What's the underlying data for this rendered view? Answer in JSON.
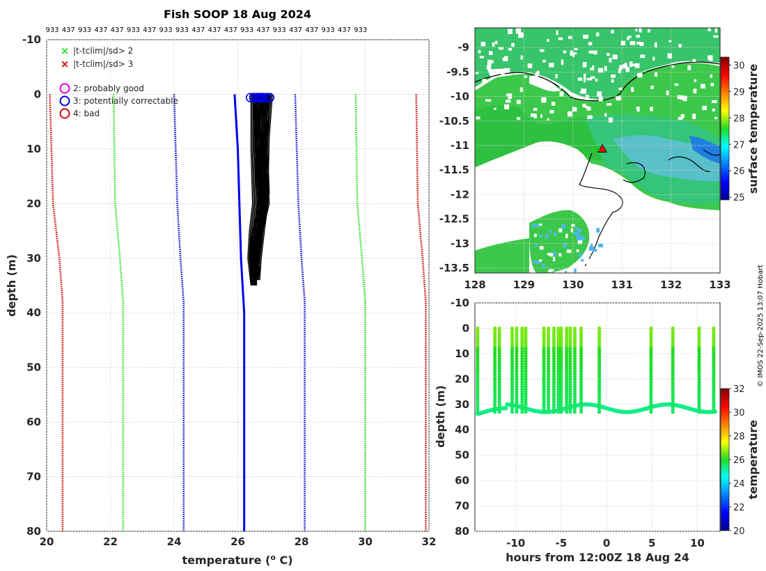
{
  "chart_data": [
    {
      "type": "line",
      "title": "Fish SOOP 18 Aug 2024",
      "top_labels": [
        "933",
        "437",
        "933",
        "437",
        "437",
        "933",
        "437",
        "933",
        "933",
        "437",
        "437",
        "437",
        "933",
        "437",
        "933",
        "437",
        "437",
        "933",
        "437",
        "933"
      ],
      "xlabel": "temperature (",
      "xlabel_sup": "o",
      "xlabel_end": " C)",
      "ylabel": "depth (m)",
      "xlim": [
        20,
        32
      ],
      "ylim": [
        -10,
        80
      ],
      "xticks": [
        "20",
        "22",
        "24",
        "26",
        "28",
        "30",
        "32"
      ],
      "yticks": [
        "-10",
        "0",
        "10",
        "20",
        "30",
        "40",
        "50",
        "60",
        "70",
        "80"
      ],
      "legend": [
        {
          "symbol": "x",
          "color": "#22dd22",
          "label": "|t-tclim|/sd> 2"
        },
        {
          "symbol": "x",
          "color": "#dd0000",
          "label": "|t-tclim|/sd> 3"
        },
        {
          "symbol": "o",
          "color": "#dd00dd",
          "label": "2: probably good"
        },
        {
          "symbol": "o",
          "color": "#0000dd",
          "label": "3: potentially correctable"
        },
        {
          "symbol": "o",
          "color": "#dd0000",
          "label": "4: bad"
        }
      ],
      "climatology": [
        {
          "name": "clim -3sd",
          "color": "#cc0000",
          "depth": [
            0,
            20,
            30,
            38,
            80
          ],
          "temp": [
            20.1,
            20.2,
            20.4,
            20.5,
            20.5
          ]
        },
        {
          "name": "clim -2sd",
          "color": "#22dd22",
          "depth": [
            0,
            20,
            30,
            38,
            80
          ],
          "temp": [
            22.1,
            22.15,
            22.3,
            22.4,
            22.4
          ]
        },
        {
          "name": "clim -1sd",
          "color": "#0000cc",
          "depth": [
            0,
            20,
            30,
            38,
            80
          ],
          "temp": [
            24.0,
            24.1,
            24.2,
            24.3,
            24.3
          ]
        },
        {
          "name": "clim +1sd",
          "color": "#0000cc",
          "depth": [
            0,
            20,
            30,
            38,
            80
          ],
          "temp": [
            27.8,
            27.9,
            28.0,
            28.1,
            28.1
          ]
        },
        {
          "name": "clim +2sd",
          "color": "#22dd22",
          "depth": [
            0,
            20,
            30,
            38,
            80
          ],
          "temp": [
            29.7,
            29.75,
            29.9,
            30.0,
            30.0
          ]
        },
        {
          "name": "clim +3sd",
          "color": "#cc0000",
          "depth": [
            0,
            20,
            30,
            38,
            80
          ],
          "temp": [
            31.6,
            31.65,
            31.8,
            31.9,
            31.9
          ]
        }
      ],
      "mean_profile": {
        "name": "mean",
        "color": "#0000ee",
        "depth": [
          0,
          5,
          10,
          20,
          30,
          40,
          80
        ],
        "temp": [
          25.9,
          25.95,
          26.0,
          26.05,
          26.1,
          26.2,
          26.2
        ]
      },
      "profiles": [
        {
          "depth": [
            0,
            10,
            20,
            25,
            30,
            35
          ],
          "temp": [
            26.5,
            26.5,
            26.55,
            26.45,
            26.4,
            26.5
          ]
        },
        {
          "depth": [
            0,
            10,
            20,
            25,
            30,
            35
          ],
          "temp": [
            26.6,
            26.6,
            26.7,
            26.6,
            26.5,
            26.5
          ]
        },
        {
          "depth": [
            0,
            10,
            20,
            25,
            30,
            34
          ],
          "temp": [
            26.7,
            26.75,
            26.8,
            26.7,
            26.6,
            26.6
          ]
        },
        {
          "depth": [
            0,
            10,
            20,
            25,
            30,
            33
          ],
          "temp": [
            26.8,
            26.8,
            26.9,
            26.7,
            26.6,
            26.5
          ]
        },
        {
          "depth": [
            0,
            10,
            18,
            25,
            30,
            34
          ],
          "temp": [
            26.9,
            26.85,
            26.9,
            26.75,
            26.65,
            26.6
          ]
        },
        {
          "depth": [
            0,
            8,
            20,
            25,
            31,
            35
          ],
          "temp": [
            27.0,
            26.9,
            26.85,
            26.65,
            26.5,
            26.5
          ]
        },
        {
          "depth": [
            0,
            10,
            20,
            26,
            30,
            34
          ],
          "temp": [
            26.55,
            26.65,
            26.75,
            26.5,
            26.45,
            26.5
          ]
        }
      ],
      "surface_flags": [
        26.4,
        26.5,
        26.6,
        26.7,
        26.8,
        26.9,
        27.0,
        26.65,
        26.75
      ]
    },
    {
      "type": "heatmap",
      "title": "surface temperature map",
      "xlim": [
        128,
        133
      ],
      "ylim": [
        -13.6,
        -8.6
      ],
      "xticks": [
        "128",
        "129",
        "130",
        "131",
        "132",
        "133"
      ],
      "yticks": [
        "-9",
        "-9.5",
        "-10",
        "-10.5",
        "-11",
        "-11.5",
        "-12",
        "-12.5",
        "-13",
        "-13.5"
      ],
      "colorbar_label": "surface temperature",
      "colorbar_ticks": [
        "25",
        "26",
        "27",
        "28",
        "29",
        "30"
      ],
      "clim": [
        24.9,
        30.3
      ],
      "marker_lon": 130.5,
      "marker_lat": -11.05
    },
    {
      "type": "scatter",
      "xlabel": "hours from 12:00Z 18 Aug 24",
      "ylabel": "depth (m)",
      "xlim": [
        -14.5,
        12.5
      ],
      "ylim": [
        -10,
        80
      ],
      "xticks": [
        "-10",
        "-5",
        "0",
        "5",
        "10"
      ],
      "yticks": [
        "-10",
        "0",
        "10",
        "20",
        "30",
        "40",
        "50",
        "60",
        "70",
        "80"
      ],
      "colorbar_label": "temperature",
      "colorbar_ticks": [
        "20",
        "22",
        "24",
        "26",
        "28",
        "30",
        "32"
      ],
      "clim": [
        20,
        32
      ],
      "cast_hours": [
        -14.2,
        -12.3,
        -11.8,
        -10.4,
        -9.9,
        -9.3,
        -8.9,
        -6.9,
        -6.4,
        -5.8,
        -5.3,
        -5.0,
        -4.4,
        -4.0,
        -3.5,
        -2.8,
        -0.8,
        4.9,
        7.3,
        10.2,
        11.8
      ],
      "bottom_depth": [
        33,
        32,
        31,
        30
      ]
    }
  ],
  "credit": "© IMOS 22-Sep-2025 13:07 Hobart"
}
